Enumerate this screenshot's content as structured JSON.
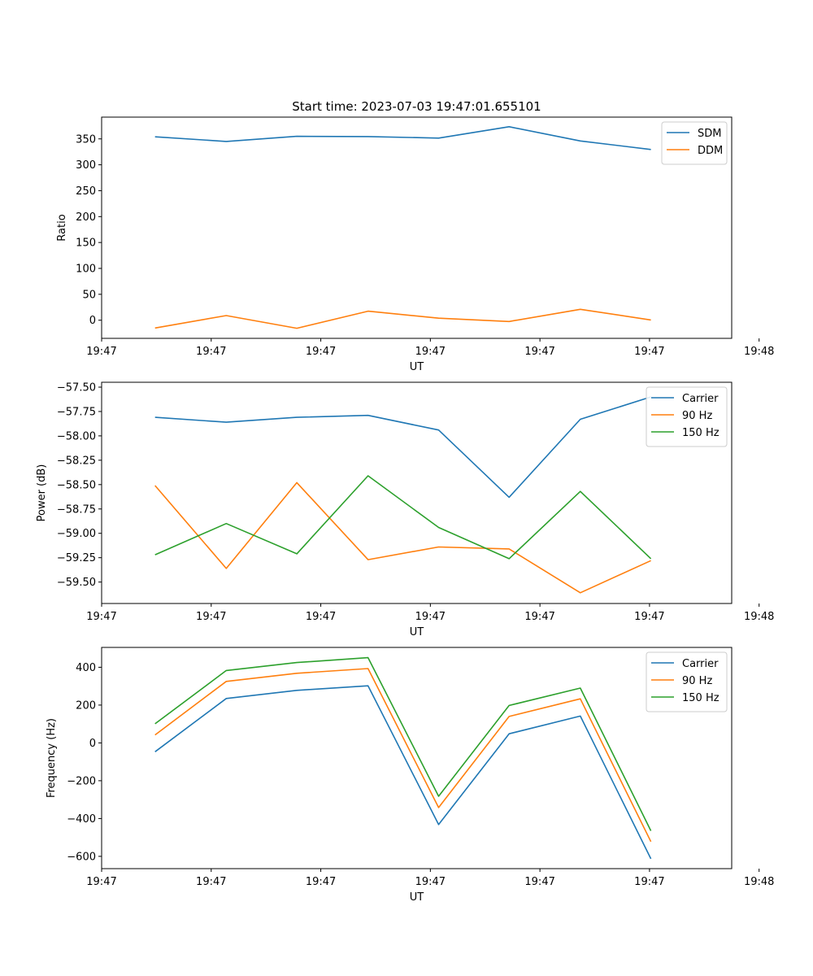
{
  "figure_title": "Start time: 2023-07-03 19:47:01.655101",
  "chart_data": [
    {
      "type": "line",
      "title": "Start time: 2023-07-03 19:47:01.655101",
      "xlabel": "UT",
      "ylabel": "Ratio",
      "xlim": [
        0,
        9.2
      ],
      "ylim": [
        -35,
        392
      ],
      "x_ticks": [
        0,
        1.6,
        3.2,
        4.8,
        6.4,
        8.0,
        9.6
      ],
      "x_tick_labels": [
        "19:47",
        "19:47",
        "19:47",
        "19:47",
        "19:47",
        "19:47",
        "19:48"
      ],
      "y_ticks": [
        0,
        50,
        100,
        150,
        200,
        250,
        300,
        350
      ],
      "y_tick_labels": [
        "0",
        "50",
        "100",
        "150",
        "200",
        "250",
        "300",
        "350"
      ],
      "x": [
        0.78,
        1.82,
        2.85,
        3.89,
        4.92,
        5.95,
        6.99,
        8.02
      ],
      "legend_position": "top-right",
      "series": [
        {
          "name": "SDM",
          "color": "#1f77b4",
          "values": [
            354,
            345,
            355,
            354.5,
            351.5,
            373.5,
            346,
            329.5
          ]
        },
        {
          "name": "DDM",
          "color": "#ff7f0e",
          "values": [
            -15,
            9,
            -15.5,
            17.5,
            4,
            -2.5,
            21,
            0.5
          ]
        }
      ]
    },
    {
      "type": "line",
      "title": "",
      "xlabel": "UT",
      "ylabel": "Power (dB)",
      "xlim": [
        0,
        9.2
      ],
      "ylim": [
        -59.72,
        -57.45
      ],
      "x_ticks": [
        0,
        1.6,
        3.2,
        4.8,
        6.4,
        8.0,
        9.6
      ],
      "x_tick_labels": [
        "19:47",
        "19:47",
        "19:47",
        "19:47",
        "19:47",
        "19:47",
        "19:48"
      ],
      "y_ticks": [
        -57.5,
        -57.75,
        -58.0,
        -58.25,
        -58.5,
        -58.75,
        -59.0,
        -59.25,
        -59.5
      ],
      "y_tick_labels": [
        "−57.50",
        "−57.75",
        "−58.00",
        "−58.25",
        "−58.50",
        "−58.75",
        "−59.00",
        "−59.25",
        "−59.50"
      ],
      "x": [
        0.78,
        1.82,
        2.85,
        3.89,
        4.92,
        5.95,
        6.99,
        8.02
      ],
      "legend_position": "top-right",
      "series": [
        {
          "name": "Carrier",
          "color": "#1f77b4",
          "values": [
            -57.81,
            -57.86,
            -57.81,
            -57.79,
            -57.94,
            -58.63,
            -57.83,
            -57.6
          ]
        },
        {
          "name": "90 Hz",
          "color": "#ff7f0e",
          "values": [
            -58.51,
            -59.36,
            -58.48,
            -59.27,
            -59.14,
            -59.16,
            -59.61,
            -59.28
          ]
        },
        {
          "name": "150 Hz",
          "color": "#2ca02c",
          "values": [
            -59.22,
            -58.9,
            -59.21,
            -58.41,
            -58.94,
            -59.26,
            -58.57,
            -59.26
          ]
        }
      ]
    },
    {
      "type": "line",
      "title": "",
      "xlabel": "UT",
      "ylabel": "Frequency (Hz)",
      "xlim": [
        0,
        9.2
      ],
      "ylim": [
        -665,
        505
      ],
      "x_ticks": [
        0,
        1.6,
        3.2,
        4.8,
        6.4,
        8.0,
        9.6
      ],
      "x_tick_labels": [
        "19:47",
        "19:47",
        "19:47",
        "19:47",
        "19:47",
        "19:47",
        "19:48"
      ],
      "y_ticks": [
        -600,
        -400,
        -200,
        0,
        200,
        400
      ],
      "y_tick_labels": [
        "−600",
        "−400",
        "−200",
        "0",
        "200",
        "400"
      ],
      "x": [
        0.78,
        1.82,
        2.85,
        3.89,
        4.92,
        5.95,
        6.99,
        8.02
      ],
      "legend_position": "top-right",
      "series": [
        {
          "name": "Carrier",
          "color": "#1f77b4",
          "values": [
            -47,
            235,
            278,
            302,
            -432,
            48,
            142,
            -613
          ]
        },
        {
          "name": "90 Hz",
          "color": "#ff7f0e",
          "values": [
            42,
            325,
            368,
            393,
            -342,
            140,
            233,
            -522
          ]
        },
        {
          "name": "150 Hz",
          "color": "#2ca02c",
          "values": [
            101,
            383,
            425,
            451,
            -282,
            198,
            290,
            -465
          ]
        }
      ]
    }
  ]
}
